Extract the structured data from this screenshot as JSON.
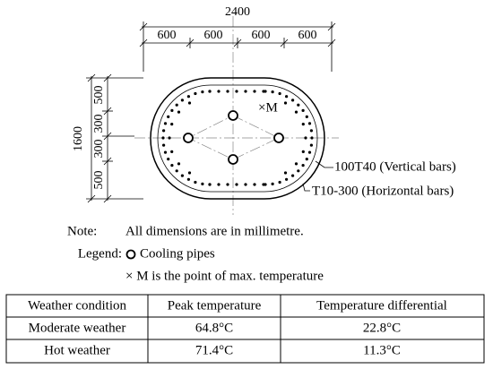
{
  "diagram": {
    "overall_width": "2400",
    "width_segments": [
      "600",
      "600",
      "600",
      "600"
    ],
    "overall_height": "1600",
    "height_segments": [
      "500",
      "300",
      "300",
      "500"
    ],
    "max_point_label": "×M",
    "callouts": [
      "100T40 (Vertical bars)",
      "T10-300 (Horizontal bars)"
    ]
  },
  "notes": {
    "note_label": "Note:",
    "note_text": "All dimensions are in millimetre.",
    "legend_label": "Legend:",
    "legend_item": "Cooling pipes",
    "max_point_note": "× M is the point of max. temperature"
  },
  "table": {
    "header": [
      "Weather condition",
      "Peak temperature",
      "Temperature differential"
    ],
    "rows": [
      [
        "Moderate weather",
        "64.8°C",
        "22.8°C"
      ],
      [
        "Hot weather",
        "71.4°C",
        "11.3°C"
      ]
    ]
  }
}
